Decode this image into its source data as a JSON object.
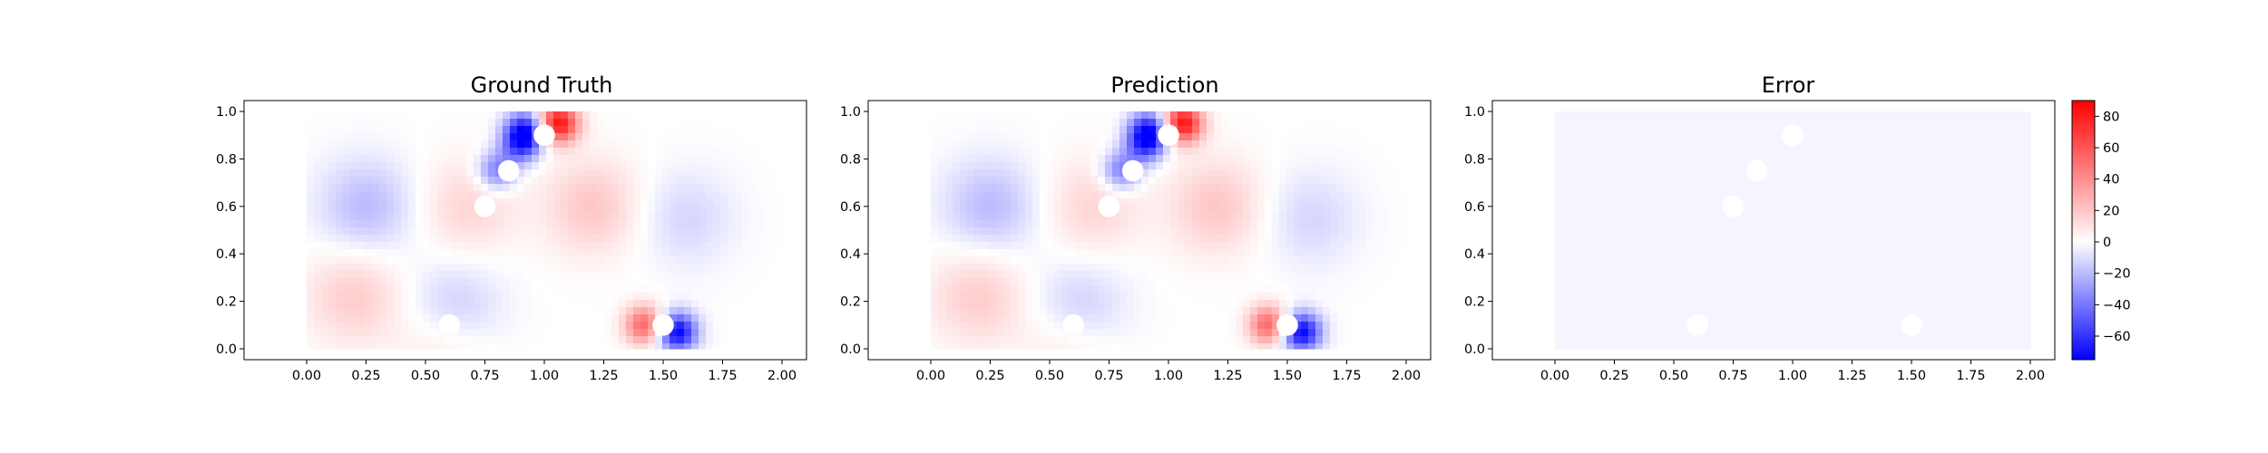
{
  "chart_data": [
    {
      "type": "heatmap",
      "title": "Ground Truth",
      "xlim": [
        0,
        2
      ],
      "ylim": [
        0,
        1
      ],
      "xticks": [
        "0.00",
        "0.25",
        "0.50",
        "0.75",
        "1.00",
        "1.25",
        "1.50",
        "1.75",
        "2.00"
      ],
      "yticks": [
        "0.0",
        "0.2",
        "0.4",
        "0.6",
        "0.8",
        "1.0"
      ],
      "colormap": "bwr",
      "obstacles": [
        {
          "x": 0.6,
          "y": 0.1,
          "r": 0.045
        },
        {
          "x": 0.75,
          "y": 0.6,
          "r": 0.045
        },
        {
          "x": 0.85,
          "y": 0.75,
          "r": 0.045
        },
        {
          "x": 1.0,
          "y": 0.9,
          "r": 0.045
        },
        {
          "x": 1.5,
          "y": 0.1,
          "r": 0.045
        }
      ],
      "field_features": [
        {
          "x": 1.06,
          "y": 0.95,
          "value": 85
        },
        {
          "x": 0.92,
          "y": 0.92,
          "value": -60
        },
        {
          "x": 0.9,
          "y": 0.86,
          "value": -45
        },
        {
          "x": 0.8,
          "y": 0.75,
          "value": -40
        },
        {
          "x": 0.68,
          "y": 0.6,
          "value": 15
        },
        {
          "x": 1.2,
          "y": 0.6,
          "value": 20
        },
        {
          "x": 1.42,
          "y": 0.1,
          "value": 55
        },
        {
          "x": 1.56,
          "y": 0.07,
          "value": -75
        },
        {
          "x": 0.2,
          "y": 0.22,
          "value": 18
        },
        {
          "x": 0.25,
          "y": 0.6,
          "value": -20
        },
        {
          "x": 1.6,
          "y": 0.55,
          "value": -12
        },
        {
          "x": 0.6,
          "y": 0.05,
          "value": 20
        },
        {
          "x": 0.62,
          "y": 0.14,
          "value": -25
        }
      ]
    },
    {
      "type": "heatmap",
      "title": "Prediction",
      "xlim": [
        0,
        2
      ],
      "ylim": [
        0,
        1
      ],
      "xticks": [
        "0.00",
        "0.25",
        "0.50",
        "0.75",
        "1.00",
        "1.25",
        "1.50",
        "1.75",
        "2.00"
      ],
      "yticks": [
        "0.0",
        "0.2",
        "0.4",
        "0.6",
        "0.8",
        "1.0"
      ],
      "colormap": "bwr",
      "obstacles": [
        {
          "x": 0.6,
          "y": 0.1,
          "r": 0.045
        },
        {
          "x": 0.75,
          "y": 0.6,
          "r": 0.045
        },
        {
          "x": 0.85,
          "y": 0.75,
          "r": 0.045
        },
        {
          "x": 1.0,
          "y": 0.9,
          "r": 0.045
        },
        {
          "x": 1.5,
          "y": 0.1,
          "r": 0.045
        }
      ],
      "field_features": [
        {
          "x": 1.06,
          "y": 0.95,
          "value": 85
        },
        {
          "x": 0.92,
          "y": 0.92,
          "value": -60
        },
        {
          "x": 0.9,
          "y": 0.86,
          "value": -45
        },
        {
          "x": 0.8,
          "y": 0.75,
          "value": -40
        },
        {
          "x": 0.68,
          "y": 0.6,
          "value": 15
        },
        {
          "x": 1.2,
          "y": 0.6,
          "value": 20
        },
        {
          "x": 1.42,
          "y": 0.1,
          "value": 55
        },
        {
          "x": 1.56,
          "y": 0.07,
          "value": -75
        },
        {
          "x": 0.2,
          "y": 0.22,
          "value": 18
        },
        {
          "x": 0.25,
          "y": 0.6,
          "value": -20
        },
        {
          "x": 1.6,
          "y": 0.55,
          "value": -12
        },
        {
          "x": 0.6,
          "y": 0.05,
          "value": 20
        },
        {
          "x": 0.62,
          "y": 0.14,
          "value": -25
        }
      ]
    },
    {
      "type": "heatmap",
      "title": "Error",
      "xlim": [
        0,
        2
      ],
      "ylim": [
        0,
        1
      ],
      "xticks": [
        "0.00",
        "0.25",
        "0.50",
        "0.75",
        "1.00",
        "1.25",
        "1.50",
        "1.75",
        "2.00"
      ],
      "yticks": [
        "0.0",
        "0.2",
        "0.4",
        "0.6",
        "0.8",
        "1.0"
      ],
      "colormap": "bwr",
      "uniform_value": -3,
      "obstacles": [
        {
          "x": 0.6,
          "y": 0.1,
          "r": 0.045
        },
        {
          "x": 0.75,
          "y": 0.6,
          "r": 0.045
        },
        {
          "x": 0.85,
          "y": 0.75,
          "r": 0.045
        },
        {
          "x": 1.0,
          "y": 0.9,
          "r": 0.045
        },
        {
          "x": 1.5,
          "y": 0.1,
          "r": 0.045
        }
      ]
    }
  ],
  "colorbar": {
    "colormap": "bwr",
    "range": [
      -75,
      90
    ],
    "ticks": [
      {
        "value": 80,
        "label": "80"
      },
      {
        "value": 60,
        "label": "60"
      },
      {
        "value": 40,
        "label": "40"
      },
      {
        "value": 20,
        "label": "20"
      },
      {
        "value": 0,
        "label": "0"
      },
      {
        "value": -20,
        "label": "−20"
      },
      {
        "value": -40,
        "label": "−40"
      },
      {
        "value": -60,
        "label": "−60"
      }
    ]
  }
}
